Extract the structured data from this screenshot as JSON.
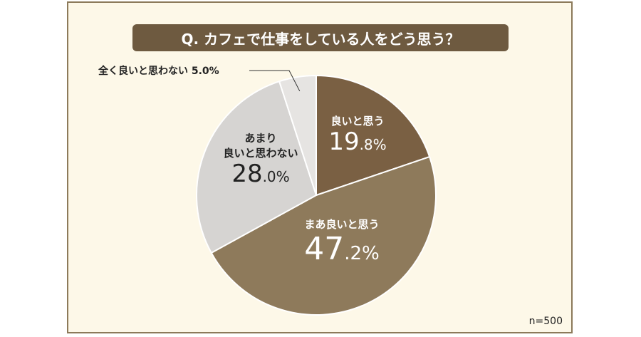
{
  "title": "Q. カフェで仕事をしている人をどう思う？",
  "sample_size": "n=500",
  "chart_data": {
    "type": "pie",
    "title": "Q. カフェで仕事をしている人をどう思う？",
    "slices": [
      {
        "label": "良いと思う",
        "value": 19.8,
        "display_int": "19",
        "display_dec": ".8%",
        "color": "#7a6043"
      },
      {
        "label": "まあ良いと思う",
        "value": 47.2,
        "display_int": "47",
        "display_dec": ".2%",
        "color": "#8e7a5b"
      },
      {
        "label_line1": "あまり",
        "label_line2": "良いと思わない",
        "value": 28.0,
        "display_int": "28",
        "display_dec": ".0%",
        "color": "#d6d4d2"
      },
      {
        "label": "全く良いと思わない",
        "value": 5.0,
        "display": "全く良いと思わない 5.0%",
        "color": "#e6e4e2"
      }
    ]
  }
}
